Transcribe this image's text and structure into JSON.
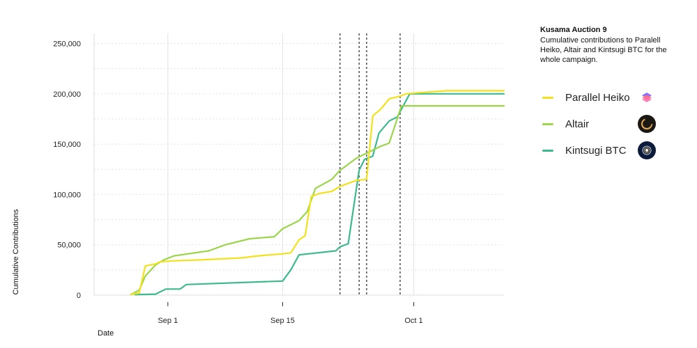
{
  "chart_data": {
    "type": "line",
    "title": "Kusama Auction 9",
    "subtitle": "Cumulative contributions to Paralell Heiko, Altair and Kintsugi BTC for the whole campaign.",
    "xlabel": "Date",
    "ylabel": "Cumulative Contributions",
    "x_ticks": [
      {
        "label": "Sep 1",
        "date": "2021-09-01"
      },
      {
        "label": "Sep 15",
        "date": "2021-09-15"
      },
      {
        "label": "Oct 1",
        "date": "2021-10-01"
      }
    ],
    "xlim": [
      "2021-08-23",
      "2021-10-12"
    ],
    "ylim": [
      0,
      260000
    ],
    "y_ticks": [
      0,
      50000,
      100000,
      150000,
      200000,
      250000
    ],
    "y_tick_labels": [
      "0",
      "50,000",
      "100,000",
      "150,000",
      "200,000",
      "250,000"
    ],
    "grid": true,
    "legend_position": "right",
    "vertical_markers": [
      "2021-09-22",
      "2021-09-24 08:00",
      "2021-09-25 06:00",
      "2021-09-29 08:00"
    ],
    "series": [
      {
        "name": "Parallel Heiko",
        "color": "#f2e11b",
        "icon": "parallel-heiko-logo-icon",
        "points": [
          [
            "2021-08-27 12:00",
            1000
          ],
          [
            "2021-08-28 12:00",
            2000
          ],
          [
            "2021-08-29 06:00",
            29000
          ],
          [
            "2021-08-30 12:00",
            31000
          ],
          [
            "2021-08-31",
            33000
          ],
          [
            "2021-09-01 12:00",
            34000
          ],
          [
            "2021-09-05",
            35000
          ],
          [
            "2021-09-10",
            37000
          ],
          [
            "2021-09-12",
            39000
          ],
          [
            "2021-09-15",
            41000
          ],
          [
            "2021-09-16",
            42000
          ],
          [
            "2021-09-17",
            55000
          ],
          [
            "2021-09-17 18:00",
            59000
          ],
          [
            "2021-09-18 12:00",
            98000
          ],
          [
            "2021-09-19 12:00",
            101000
          ],
          [
            "2021-09-21",
            103000
          ],
          [
            "2021-09-22",
            108000
          ],
          [
            "2021-09-23",
            111000
          ],
          [
            "2021-09-24",
            114000
          ],
          [
            "2021-09-25 06:00",
            115000
          ],
          [
            "2021-09-26",
            178000
          ],
          [
            "2021-09-27",
            185000
          ],
          [
            "2021-09-28",
            195000
          ],
          [
            "2021-09-29 12:00",
            198000
          ],
          [
            "2021-09-30",
            200000
          ],
          [
            "2021-10-01 12:00",
            201000
          ],
          [
            "2021-10-05",
            203000
          ],
          [
            "2021-10-12",
            203000
          ]
        ]
      },
      {
        "name": "Altair",
        "color": "#9bd54a",
        "icon": "altair-logo-icon",
        "points": [
          [
            "2021-08-27 12:00",
            500
          ],
          [
            "2021-08-28 12:00",
            5000
          ],
          [
            "2021-08-29 06:00",
            19000
          ],
          [
            "2021-08-30 12:00",
            30000
          ],
          [
            "2021-08-31 12:00",
            35000
          ],
          [
            "2021-09-01 18:00",
            39000
          ],
          [
            "2021-09-06",
            44000
          ],
          [
            "2021-09-08",
            50000
          ],
          [
            "2021-09-11",
            56000
          ],
          [
            "2021-09-14",
            58000
          ],
          [
            "2021-09-15",
            66000
          ],
          [
            "2021-09-17",
            74000
          ],
          [
            "2021-09-18",
            83000
          ],
          [
            "2021-09-19",
            106000
          ],
          [
            "2021-09-21",
            115000
          ],
          [
            "2021-09-22",
            124000
          ],
          [
            "2021-09-24",
            136000
          ],
          [
            "2021-09-26",
            144000
          ],
          [
            "2021-09-27",
            148000
          ],
          [
            "2021-09-28",
            151000
          ],
          [
            "2021-09-29 12:00",
            188000
          ],
          [
            "2021-10-12",
            188000
          ]
        ]
      },
      {
        "name": "Kintsugi BTC",
        "color": "#3db98f",
        "icon": "kintsugi-btc-logo-icon",
        "points": [
          [
            "2021-08-28",
            500
          ],
          [
            "2021-08-30 12:00",
            1000
          ],
          [
            "2021-08-31 18:00",
            6000
          ],
          [
            "2021-09-02 12:00",
            6000
          ],
          [
            "2021-09-03 06:00",
            10500
          ],
          [
            "2021-09-15",
            14000
          ],
          [
            "2021-09-16",
            25000
          ],
          [
            "2021-09-17",
            40000
          ],
          [
            "2021-09-21 12:00",
            44000
          ],
          [
            "2021-09-22",
            48000
          ],
          [
            "2021-09-23",
            51000
          ],
          [
            "2021-09-24 08:00",
            124000
          ],
          [
            "2021-09-25",
            135000
          ],
          [
            "2021-09-26",
            138000
          ],
          [
            "2021-09-26 18:00",
            161000
          ],
          [
            "2021-09-28",
            173000
          ],
          [
            "2021-09-29",
            177000
          ],
          [
            "2021-09-30 12:00",
            200000
          ],
          [
            "2021-10-12",
            200000
          ]
        ]
      }
    ]
  }
}
